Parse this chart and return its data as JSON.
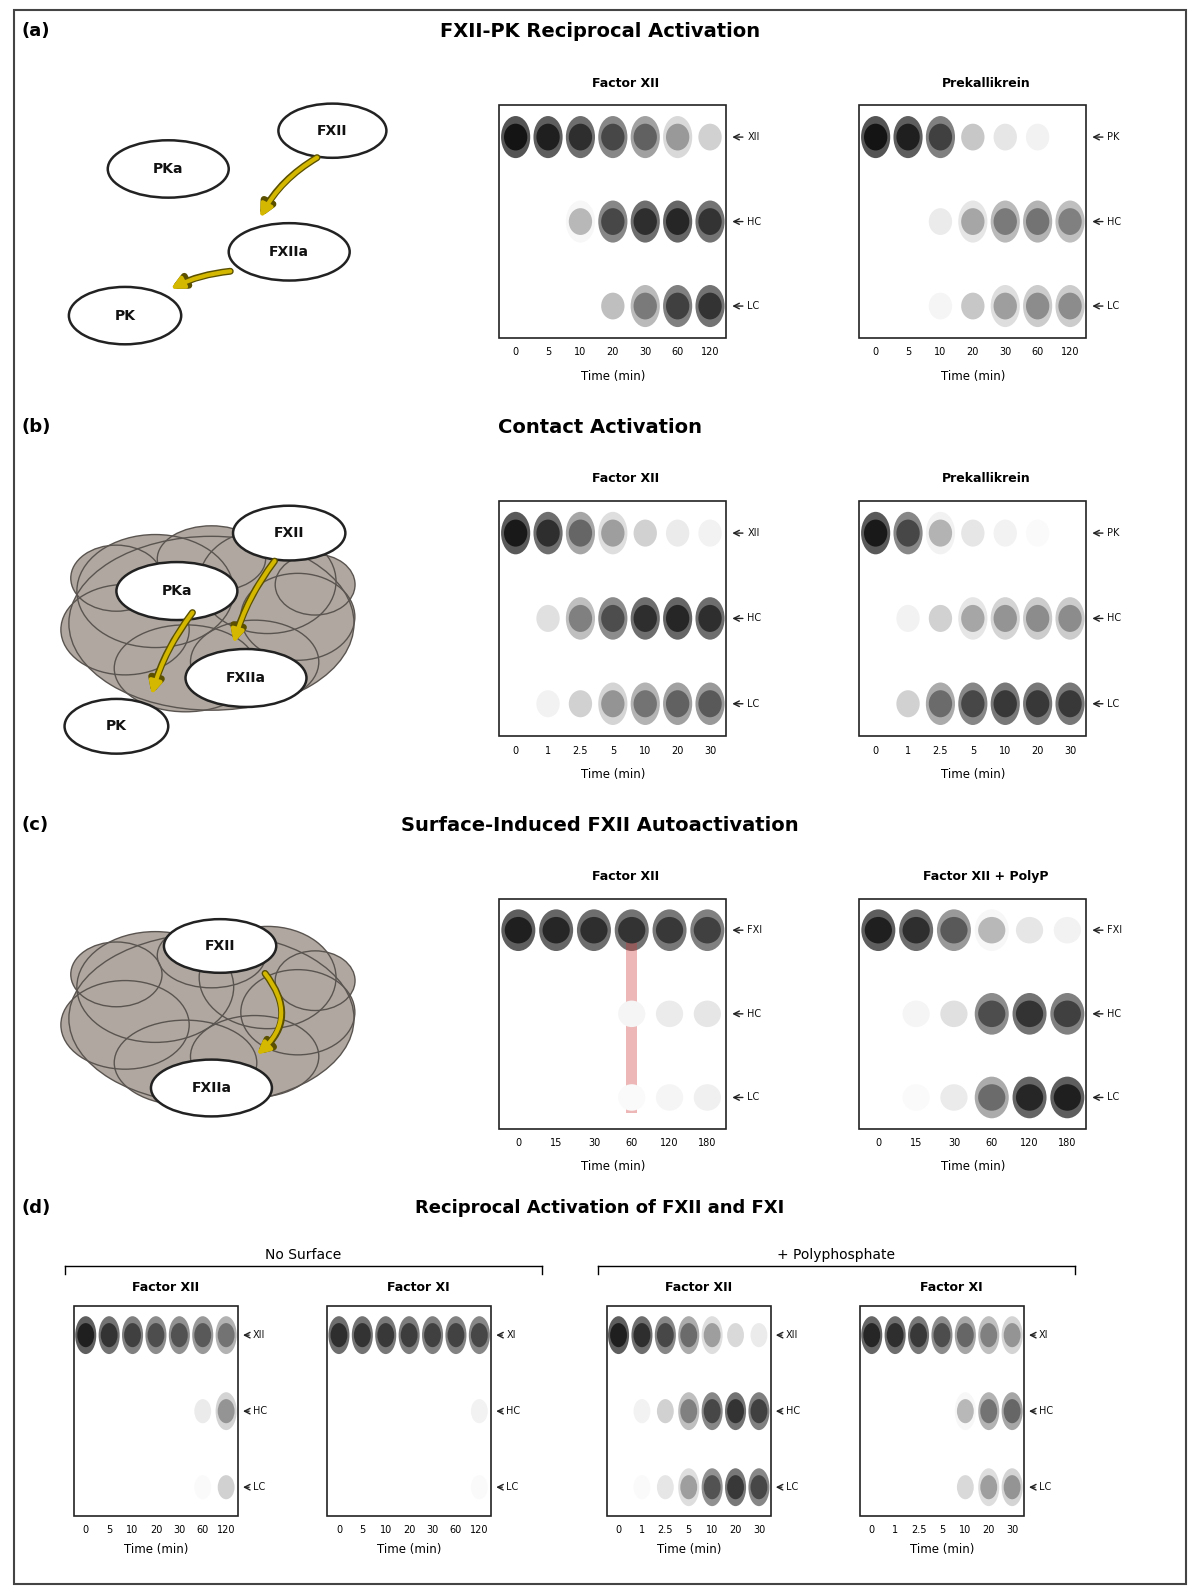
{
  "fig_width": 12.0,
  "fig_height": 15.94,
  "bg_color": "#ffffff",
  "border_color": "#444444",
  "panel_labels": [
    "(a)",
    "(b)",
    "(c)",
    "(d)"
  ],
  "panel_a": {
    "title": "FXII-PK Reciprocal Activation",
    "gel1_title": "Factor XII",
    "gel2_title": "Prekallikrein",
    "gel1_xticks": [
      "0",
      "5",
      "10",
      "20",
      "30",
      "60",
      "120"
    ],
    "gel2_xticks": [
      "0",
      "5",
      "10",
      "20",
      "30",
      "60",
      "120"
    ],
    "gel1_row_labels": [
      "XII",
      "HC",
      "LC"
    ],
    "gel2_row_labels": [
      "PK",
      "HC",
      "LC"
    ],
    "xlabel": "Time (min)",
    "gel1_bands": [
      [
        0.92,
        0.88,
        0.82,
        0.72,
        0.62,
        0.4,
        0.18
      ],
      [
        0.0,
        0.0,
        0.28,
        0.72,
        0.82,
        0.85,
        0.8
      ],
      [
        0.0,
        0.0,
        0.0,
        0.25,
        0.52,
        0.75,
        0.8
      ]
    ],
    "gel2_bands": [
      [
        0.92,
        0.88,
        0.75,
        0.22,
        0.1,
        0.05,
        0.0
      ],
      [
        0.0,
        0.0,
        0.08,
        0.35,
        0.52,
        0.55,
        0.5
      ],
      [
        0.0,
        0.0,
        0.04,
        0.22,
        0.38,
        0.45,
        0.45
      ]
    ]
  },
  "panel_b": {
    "title": "Contact Activation",
    "gel1_title": "Factor XII",
    "gel2_title": "Prekallikrein",
    "gel1_xticks": [
      "0",
      "1",
      "2.5",
      "5",
      "10",
      "20",
      "30"
    ],
    "gel2_xticks": [
      "0",
      "1",
      "2.5",
      "5",
      "10",
      "20",
      "30"
    ],
    "gel1_row_labels": [
      "XII",
      "HC",
      "LC"
    ],
    "gel2_row_labels": [
      "PK",
      "HC",
      "LC"
    ],
    "xlabel": "Time (min)",
    "gel1_bands": [
      [
        0.9,
        0.82,
        0.6,
        0.38,
        0.18,
        0.08,
        0.05
      ],
      [
        0.0,
        0.12,
        0.5,
        0.7,
        0.82,
        0.85,
        0.82
      ],
      [
        0.0,
        0.05,
        0.18,
        0.42,
        0.55,
        0.62,
        0.65
      ]
    ],
    "gel2_bands": [
      [
        0.9,
        0.72,
        0.3,
        0.1,
        0.05,
        0.02,
        0.0
      ],
      [
        0.0,
        0.05,
        0.18,
        0.35,
        0.42,
        0.45,
        0.45
      ],
      [
        0.0,
        0.18,
        0.58,
        0.72,
        0.78,
        0.78,
        0.78
      ]
    ]
  },
  "panel_c": {
    "title": "Surface-Induced FXII Autoactivation",
    "gel1_title": "Factor XII",
    "gel2_title": "Factor XII + PolyP",
    "gel1_xticks": [
      "0",
      "15",
      "30",
      "60",
      "120",
      "180"
    ],
    "gel2_xticks": [
      "0",
      "15",
      "30",
      "60",
      "120",
      "180"
    ],
    "gel1_row_labels": [
      "FXI",
      "HC",
      "LC"
    ],
    "gel2_row_labels": [
      "FXI",
      "HC",
      "LC"
    ],
    "xlabel": "Time (min)",
    "gel1_bands": [
      [
        0.88,
        0.85,
        0.82,
        0.8,
        0.78,
        0.75
      ],
      [
        0.0,
        0.0,
        0.0,
        0.04,
        0.08,
        0.1
      ],
      [
        0.0,
        0.0,
        0.0,
        0.02,
        0.04,
        0.06
      ]
    ],
    "gel2_bands": [
      [
        0.88,
        0.82,
        0.65,
        0.28,
        0.1,
        0.05
      ],
      [
        0.0,
        0.04,
        0.12,
        0.7,
        0.8,
        0.75
      ],
      [
        0.0,
        0.02,
        0.08,
        0.58,
        0.85,
        0.88
      ]
    ],
    "gel1_has_smear": true,
    "gel1_smear_lane": 3,
    "gel1_smear_color": "#cc3333"
  },
  "panel_d": {
    "title": "Reciprocal Activation of FXII and FXI",
    "subtitle1": "No Surface",
    "subtitle2": "+ Polyphosphate",
    "gel1_title": "Factor XII",
    "gel2_title": "Factor XI",
    "gel3_title": "Factor XII",
    "gel4_title": "Factor XI",
    "gel12_xticks": [
      "0",
      "5",
      "10",
      "20",
      "30",
      "60",
      "120"
    ],
    "gel34_xticks": [
      "0",
      "1",
      "2.5",
      "5",
      "10",
      "20",
      "30"
    ],
    "gel1_row_labels": [
      "XII",
      "HC",
      "LC"
    ],
    "gel2_row_labels": [
      "XI",
      "HC",
      "LC"
    ],
    "gel3_row_labels": [
      "XII",
      "HC",
      "LC"
    ],
    "gel4_row_labels": [
      "XI",
      "HC",
      "LC"
    ],
    "xlabel": "Time (min)",
    "gel1_bands": [
      [
        0.88,
        0.8,
        0.75,
        0.7,
        0.68,
        0.65,
        0.55
      ],
      [
        0.0,
        0.0,
        0.0,
        0.0,
        0.0,
        0.08,
        0.42
      ],
      [
        0.0,
        0.0,
        0.0,
        0.0,
        0.0,
        0.02,
        0.18
      ]
    ],
    "gel2_bands": [
      [
        0.82,
        0.8,
        0.78,
        0.76,
        0.75,
        0.74,
        0.72
      ],
      [
        0.0,
        0.0,
        0.0,
        0.0,
        0.0,
        0.0,
        0.05
      ],
      [
        0.0,
        0.0,
        0.0,
        0.0,
        0.0,
        0.0,
        0.02
      ]
    ],
    "gel3_bands": [
      [
        0.88,
        0.82,
        0.72,
        0.58,
        0.38,
        0.15,
        0.08
      ],
      [
        0.0,
        0.05,
        0.18,
        0.5,
        0.72,
        0.8,
        0.75
      ],
      [
        0.0,
        0.02,
        0.1,
        0.38,
        0.68,
        0.78,
        0.72
      ]
    ],
    "gel4_bands": [
      [
        0.85,
        0.82,
        0.78,
        0.7,
        0.6,
        0.5,
        0.42
      ],
      [
        0.0,
        0.0,
        0.0,
        0.0,
        0.28,
        0.55,
        0.6
      ],
      [
        0.0,
        0.0,
        0.0,
        0.0,
        0.15,
        0.38,
        0.42
      ]
    ]
  },
  "gray_color": "#b0a8a0",
  "gray_edge": "#5a5450",
  "oval_fill": "#ffffff",
  "oval_edge": "#222222",
  "arrow_yellow": "#d4b800",
  "arrow_outline": "#5a5000",
  "gel_bg": "#ffffff",
  "gel_border": "#222222"
}
